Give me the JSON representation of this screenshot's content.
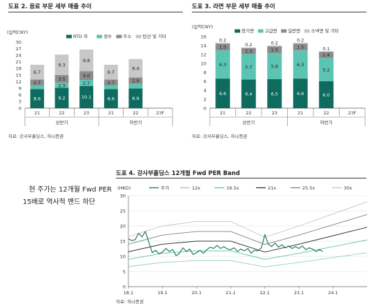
{
  "charts": [
    {
      "figure_title": "도표 2. 음료 부문 세부 매출 추이",
      "source": "자료: 강사부홀딩스, 하나증권"
    },
    {
      "figure_title": "도표 3. 라면 부문 세부 매출 추이",
      "source": "자료: 강사부홀딩스, 하나증권"
    },
    {
      "figure_title": "도표 4. 강사부홀딩스 12개월 Fwd PER Band",
      "source": "자료: 하나증권"
    }
  ],
  "caption": {
    "line1": "현 주가는 12개월 Fwd PER",
    "line2": "15배로 역사적 밴드 하단"
  },
  "chart_data": [
    {
      "type": "bar",
      "stacked": true,
      "ylabel": "(십억CNY)",
      "ylim": [
        0,
        30
      ],
      "yticks": [
        "0",
        "3",
        "6",
        "9",
        "12",
        "15",
        "18",
        "21",
        "24",
        "27",
        "30"
      ],
      "categories": [
        "21",
        "22",
        "23",
        "21",
        "22",
        "23F"
      ],
      "groups": [
        {
          "label": "상반기",
          "span": 3
        },
        {
          "label": "하반기",
          "span": 3
        }
      ],
      "legend_position": "top-right",
      "series": [
        {
          "name": "RTD 차",
          "color": "#0e6b5e",
          "values": [
            8.6,
            9.2,
            10.1,
            8.6,
            8.9,
            null
          ]
        },
        {
          "name": "생수",
          "color": "#5bc4b3",
          "values": [
            1.7,
            2.3,
            2.7,
            1.7,
            2.1,
            null
          ]
        },
        {
          "name": "주스",
          "color": "#8c8c8c",
          "values": [
            2.7,
            3.5,
            4.0,
            2.7,
            2.9,
            null
          ]
        },
        {
          "name": "탄산 및 기타",
          "color": "#c8c8c8",
          "values": [
            6.7,
            9.3,
            9.8,
            6.7,
            8.4,
            null
          ]
        }
      ],
      "labels": [
        [
          "8.6",
          "9.2",
          "10.1",
          "8.6",
          "8.9",
          ""
        ],
        [
          "1.7",
          "2.3",
          "2.7",
          "1.7",
          "2.1",
          ""
        ],
        [
          "2.7",
          "3.5",
          "4.0",
          "2.7",
          "2.9",
          ""
        ],
        [
          "6.7",
          "9.3",
          "9.8",
          "6.7",
          "8.4",
          ""
        ]
      ],
      "grid": false
    },
    {
      "type": "bar",
      "stacked": true,
      "ylabel": "(십억CNY)",
      "ylim": [
        0,
        16
      ],
      "yticks": [
        "0",
        "2",
        "4",
        "6",
        "8",
        "10",
        "12",
        "14",
        "16"
      ],
      "categories": [
        "21",
        "22",
        "23",
        "21",
        "22",
        "23F"
      ],
      "groups": [
        {
          "label": "상반기",
          "span": 3
        },
        {
          "label": "하반기",
          "span": 3
        }
      ],
      "legend_position": "top-right",
      "series": [
        {
          "name": "용기면",
          "color": "#0e6b5e",
          "values": [
            6.6,
            6.4,
            6.5,
            6.6,
            6.0,
            null
          ]
        },
        {
          "name": "고급면",
          "color": "#5bc4b3",
          "values": [
            6.3,
            5.7,
            5.8,
            6.3,
            5.2,
            null
          ]
        },
        {
          "name": "일반면",
          "color": "#8c8c8c",
          "values": [
            1.5,
            1.3,
            1.5,
            1.5,
            1.4,
            null
          ]
        },
        {
          "name": "스낵면 및 기타",
          "color": "#c8c8c8",
          "values": [
            0.2,
            0.2,
            0.2,
            0.2,
            0.1,
            null
          ]
        }
      ],
      "labels": [
        [
          "6.6",
          "6.4",
          "6.5",
          "6.6",
          "6.0",
          ""
        ],
        [
          "6.3",
          "5.7",
          "5.8",
          "6.3",
          "5.2",
          ""
        ],
        [
          "1.5",
          "1.3",
          "1.5",
          "1.5",
          "1.4",
          ""
        ],
        [
          "0.2",
          "0.2",
          "0.2",
          "0.2",
          "0.1",
          ""
        ]
      ],
      "grid": false
    },
    {
      "type": "line",
      "ylabel": "(HKD)",
      "ylim": [
        0,
        30
      ],
      "yticks": [
        "0",
        "5",
        "10",
        "15",
        "20",
        "25",
        "30"
      ],
      "xlim": [
        2018.1,
        2025.1
      ],
      "xtick_labels": [
        "18.1",
        "19.1",
        "20.1",
        "21.1",
        "22.1",
        "23.1",
        "24.1"
      ],
      "xtick_values": [
        2018.1,
        2019.1,
        2020.1,
        2021.1,
        2022.1,
        2023.1,
        2024.1
      ],
      "legend_position": "top",
      "grid": true,
      "series": [
        {
          "name": "주가",
          "color": "#1f7a5a",
          "width": 1.2,
          "x": [
            2018.1,
            2018.2,
            2018.3,
            2018.4,
            2018.5,
            2018.6,
            2018.7,
            2018.8,
            2018.9,
            2019.0,
            2019.1,
            2019.2,
            2019.3,
            2019.4,
            2019.5,
            2019.6,
            2019.7,
            2019.8,
            2019.9,
            2020.0,
            2020.1,
            2020.2,
            2020.3,
            2020.4,
            2020.5,
            2020.6,
            2020.7,
            2020.8,
            2020.9,
            2021.0,
            2021.1,
            2021.2,
            2021.3,
            2021.4,
            2021.5,
            2021.6,
            2021.7,
            2021.8,
            2021.9,
            2022.0,
            2022.1,
            2022.2,
            2022.3,
            2022.4,
            2022.5,
            2022.6,
            2022.7,
            2022.8,
            2022.9,
            2023.0,
            2023.1,
            2023.2,
            2023.3,
            2023.4,
            2023.5,
            2023.6,
            2023.7,
            2023.8
          ],
          "y": [
            15.8,
            15.2,
            15.5,
            17.6,
            16.4,
            18.2,
            14.6,
            11.2,
            12.0,
            10.8,
            11.4,
            12.6,
            11.6,
            12.2,
            10.2,
            11.0,
            12.8,
            11.6,
            12.4,
            10.6,
            11.2,
            12.0,
            11.0,
            12.2,
            13.0,
            12.6,
            13.6,
            12.6,
            13.2,
            12.4,
            12.2,
            12.8,
            11.6,
            12.4,
            11.8,
            12.6,
            11.0,
            12.0,
            11.8,
            12.8,
            17.2,
            14.0,
            13.2,
            14.4,
            13.0,
            13.8,
            12.8,
            13.4,
            12.6,
            13.2,
            12.6,
            13.4,
            12.2,
            12.8,
            12.4,
            11.6,
            12.2,
            11.6
          ]
        },
        {
          "name": "12x",
          "color": "#8fd0c0",
          "width": 0.9,
          "x": [
            2018.1,
            2019.1,
            2020.1,
            2021.1,
            2022.1,
            2023.1,
            2024.1,
            2025.1
          ],
          "y": [
            6.6,
            8.0,
            8.6,
            8.6,
            6.5,
            8.0,
            9.6,
            11.2
          ]
        },
        {
          "name": "16.5x",
          "color": "#5bbfa8",
          "width": 0.9,
          "x": [
            2018.1,
            2019.1,
            2020.1,
            2021.1,
            2022.1,
            2023.1,
            2024.1,
            2025.1
          ],
          "y": [
            9.0,
            11.0,
            11.8,
            11.8,
            9.0,
            11.0,
            13.2,
            15.4
          ]
        },
        {
          "name": "21x",
          "color": "#333333",
          "width": 1.0,
          "x": [
            2018.1,
            2019.1,
            2020.1,
            2021.1,
            2022.1,
            2023.1,
            2024.1,
            2025.1
          ],
          "y": [
            11.5,
            14.0,
            15.0,
            15.0,
            11.4,
            14.0,
            16.8,
            19.6
          ]
        },
        {
          "name": "25.5x",
          "color": "#7f7f7f",
          "width": 0.9,
          "x": [
            2018.1,
            2019.1,
            2020.1,
            2021.1,
            2022.1,
            2023.1,
            2024.1,
            2025.1
          ],
          "y": [
            14.0,
            17.0,
            18.2,
            18.2,
            13.9,
            17.0,
            20.4,
            23.8
          ]
        },
        {
          "name": "30x",
          "color": "#c4c4c4",
          "width": 0.9,
          "x": [
            2018.1,
            2019.1,
            2020.1,
            2021.1,
            2022.1,
            2023.1,
            2024.1,
            2025.1
          ],
          "y": [
            16.5,
            20.0,
            21.5,
            21.5,
            16.3,
            20.0,
            24.0,
            28.0
          ]
        }
      ]
    }
  ]
}
